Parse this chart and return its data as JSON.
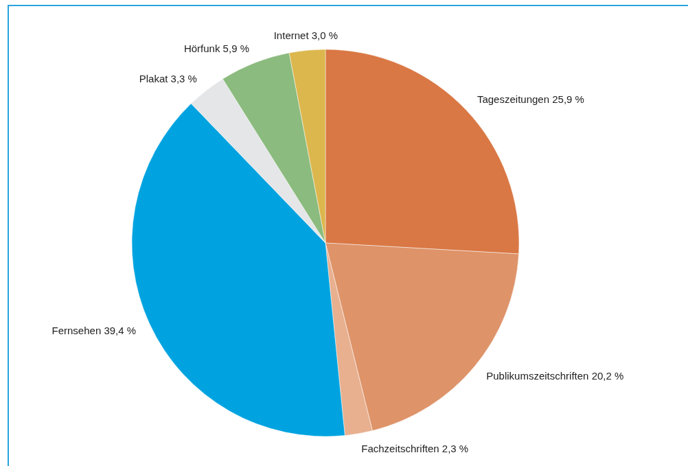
{
  "chart_data": {
    "type": "pie",
    "categories": [
      "Tageszeitungen",
      "Publikumszeitschriften",
      "Fachzeitschriften",
      "Fernsehen",
      "Plakat",
      "Hörfunk",
      "Internet"
    ],
    "values": [
      25.9,
      20.2,
      2.3,
      39.4,
      3.3,
      5.9,
      3.0
    ],
    "value_labels": [
      "25,9 %",
      "20,2 %",
      "2,3 %",
      "39,4 %",
      "3,3 %",
      "5,9 %",
      "3,0 %"
    ],
    "colors": [
      "#d97845",
      "#de9369",
      "#e8b08f",
      "#00a3e0",
      "#e5e6e8",
      "#8bbb7e",
      "#dcb74e"
    ]
  }
}
